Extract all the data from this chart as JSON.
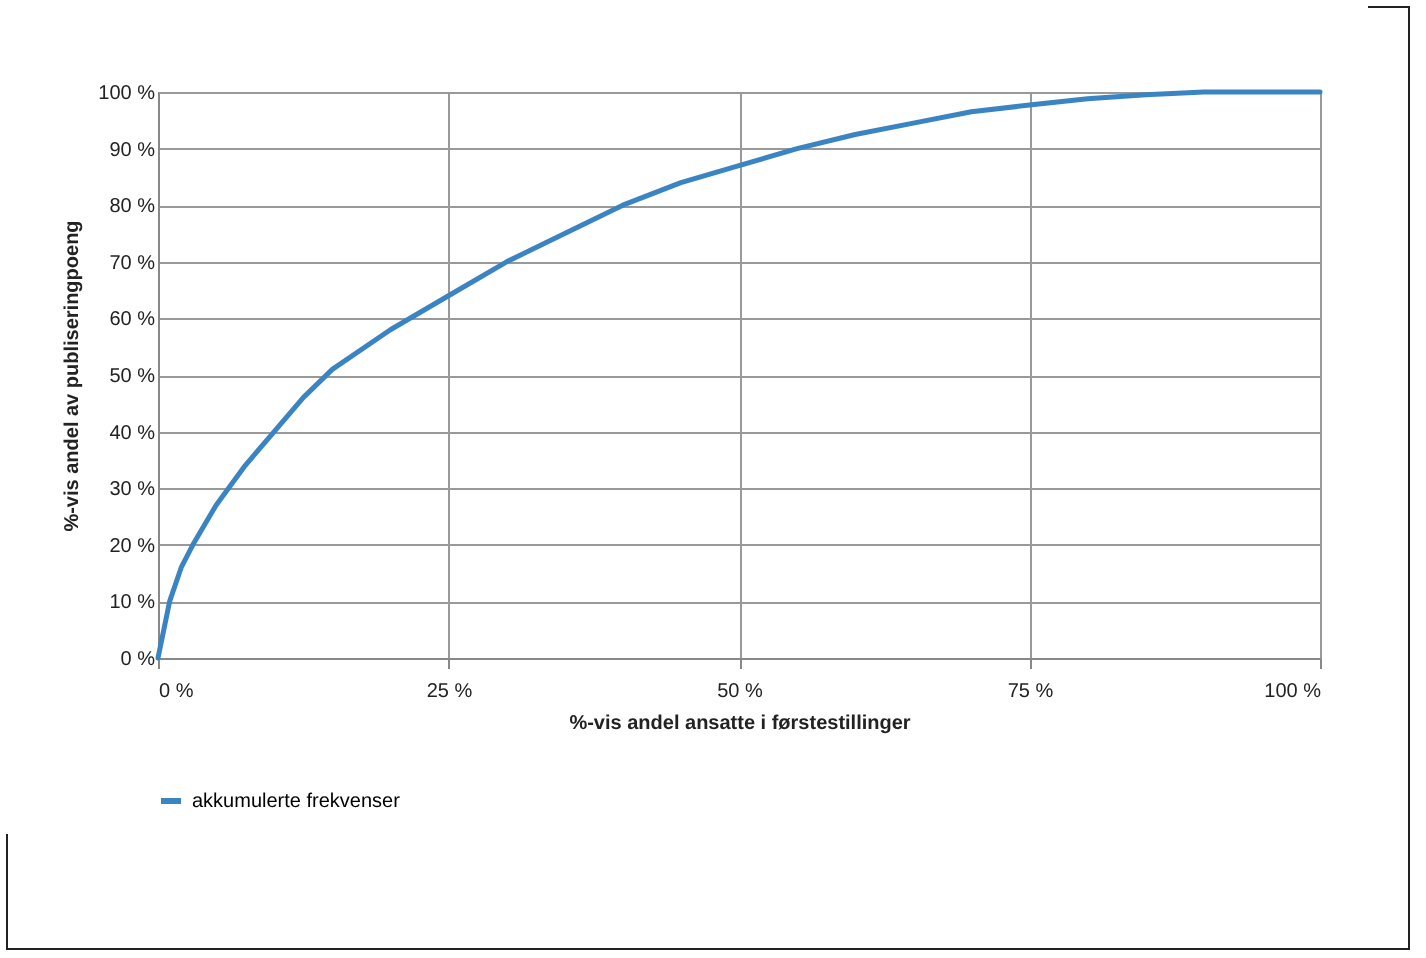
{
  "chart_data": {
    "type": "line",
    "xlabel": "%-vis andel ansatte i førstestillinger",
    "ylabel": "%-vis andel av publiseringpoeng",
    "x": [
      0,
      0.5,
      1,
      2,
      3,
      5,
      7.5,
      10,
      12.5,
      15,
      20,
      25,
      30,
      35,
      40,
      45,
      50,
      55,
      60,
      65,
      70,
      75,
      80,
      85,
      90,
      100
    ],
    "series": [
      {
        "name": "akkumulerte frekvenser",
        "color": "#3a84c4",
        "values": [
          0,
          5,
          10,
          16,
          20,
          27,
          34,
          40,
          46,
          51,
          58,
          64,
          70,
          75,
          80,
          84,
          87,
          90,
          92.5,
          94.5,
          96.5,
          97.7,
          98.8,
          99.5,
          100,
          100
        ]
      }
    ],
    "xlim": [
      0,
      100
    ],
    "xticks": [
      {
        "value": 0,
        "label": "0 %"
      },
      {
        "value": 25,
        "label": "25 %"
      },
      {
        "value": 50,
        "label": "50 %"
      },
      {
        "value": 75,
        "label": "75 %"
      },
      {
        "value": 100,
        "label": "100 %"
      }
    ],
    "ylim": [
      0,
      100
    ],
    "yticks": [
      {
        "value": 0,
        "label": "0 %"
      },
      {
        "value": 10,
        "label": "10 %"
      },
      {
        "value": 20,
        "label": "20 %"
      },
      {
        "value": 30,
        "label": "30 %"
      },
      {
        "value": 40,
        "label": "40 %"
      },
      {
        "value": 50,
        "label": "50 %"
      },
      {
        "value": 60,
        "label": "60 %"
      },
      {
        "value": 70,
        "label": "70 %"
      },
      {
        "value": 80,
        "label": "80 %"
      },
      {
        "value": 90,
        "label": "90 %"
      },
      {
        "value": 100,
        "label": "100 %"
      }
    ],
    "grid": true,
    "legend": "bottom",
    "marker": "none",
    "line_style": "solid"
  }
}
